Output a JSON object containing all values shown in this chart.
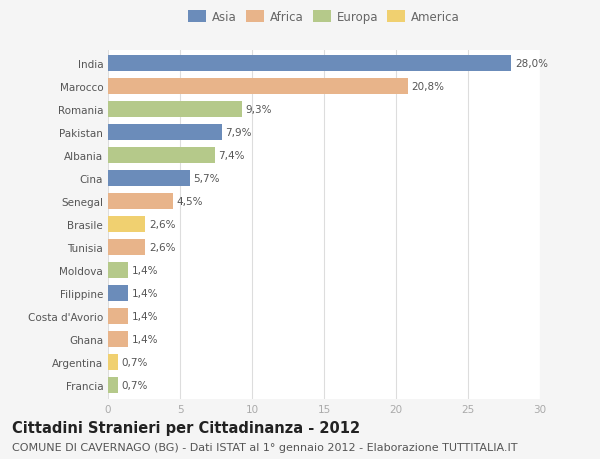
{
  "countries": [
    "India",
    "Marocco",
    "Romania",
    "Pakistan",
    "Albania",
    "Cina",
    "Senegal",
    "Brasile",
    "Tunisia",
    "Moldova",
    "Filippine",
    "Costa d'Avorio",
    "Ghana",
    "Argentina",
    "Francia"
  ],
  "values": [
    28.0,
    20.8,
    9.3,
    7.9,
    7.4,
    5.7,
    4.5,
    2.6,
    2.6,
    1.4,
    1.4,
    1.4,
    1.4,
    0.7,
    0.7
  ],
  "labels": [
    "28,0%",
    "20,8%",
    "9,3%",
    "7,9%",
    "7,4%",
    "5,7%",
    "4,5%",
    "2,6%",
    "2,6%",
    "1,4%",
    "1,4%",
    "1,4%",
    "1,4%",
    "0,7%",
    "0,7%"
  ],
  "continents": [
    "Asia",
    "Africa",
    "Europa",
    "Asia",
    "Europa",
    "Asia",
    "Africa",
    "America",
    "Africa",
    "Europa",
    "Asia",
    "Africa",
    "Africa",
    "America",
    "Europa"
  ],
  "colors": {
    "Asia": "#6b8cba",
    "Africa": "#e8b48a",
    "Europa": "#b5c98a",
    "America": "#f0d070"
  },
  "legend_order": [
    "Asia",
    "Africa",
    "Europa",
    "America"
  ],
  "xlim": [
    0,
    30
  ],
  "xticks": [
    0,
    5,
    10,
    15,
    20,
    25,
    30
  ],
  "title": "Cittadini Stranieri per Cittadinanza - 2012",
  "subtitle": "COMUNE DI CAVERNAGO (BG) - Dati ISTAT al 1° gennaio 2012 - Elaborazione TUTTITALIA.IT",
  "background_color": "#f5f5f5",
  "bar_background": "#ffffff",
  "grid_color": "#dddddd",
  "title_fontsize": 10.5,
  "subtitle_fontsize": 8,
  "label_fontsize": 7.5,
  "tick_fontsize": 7.5,
  "legend_fontsize": 8.5
}
